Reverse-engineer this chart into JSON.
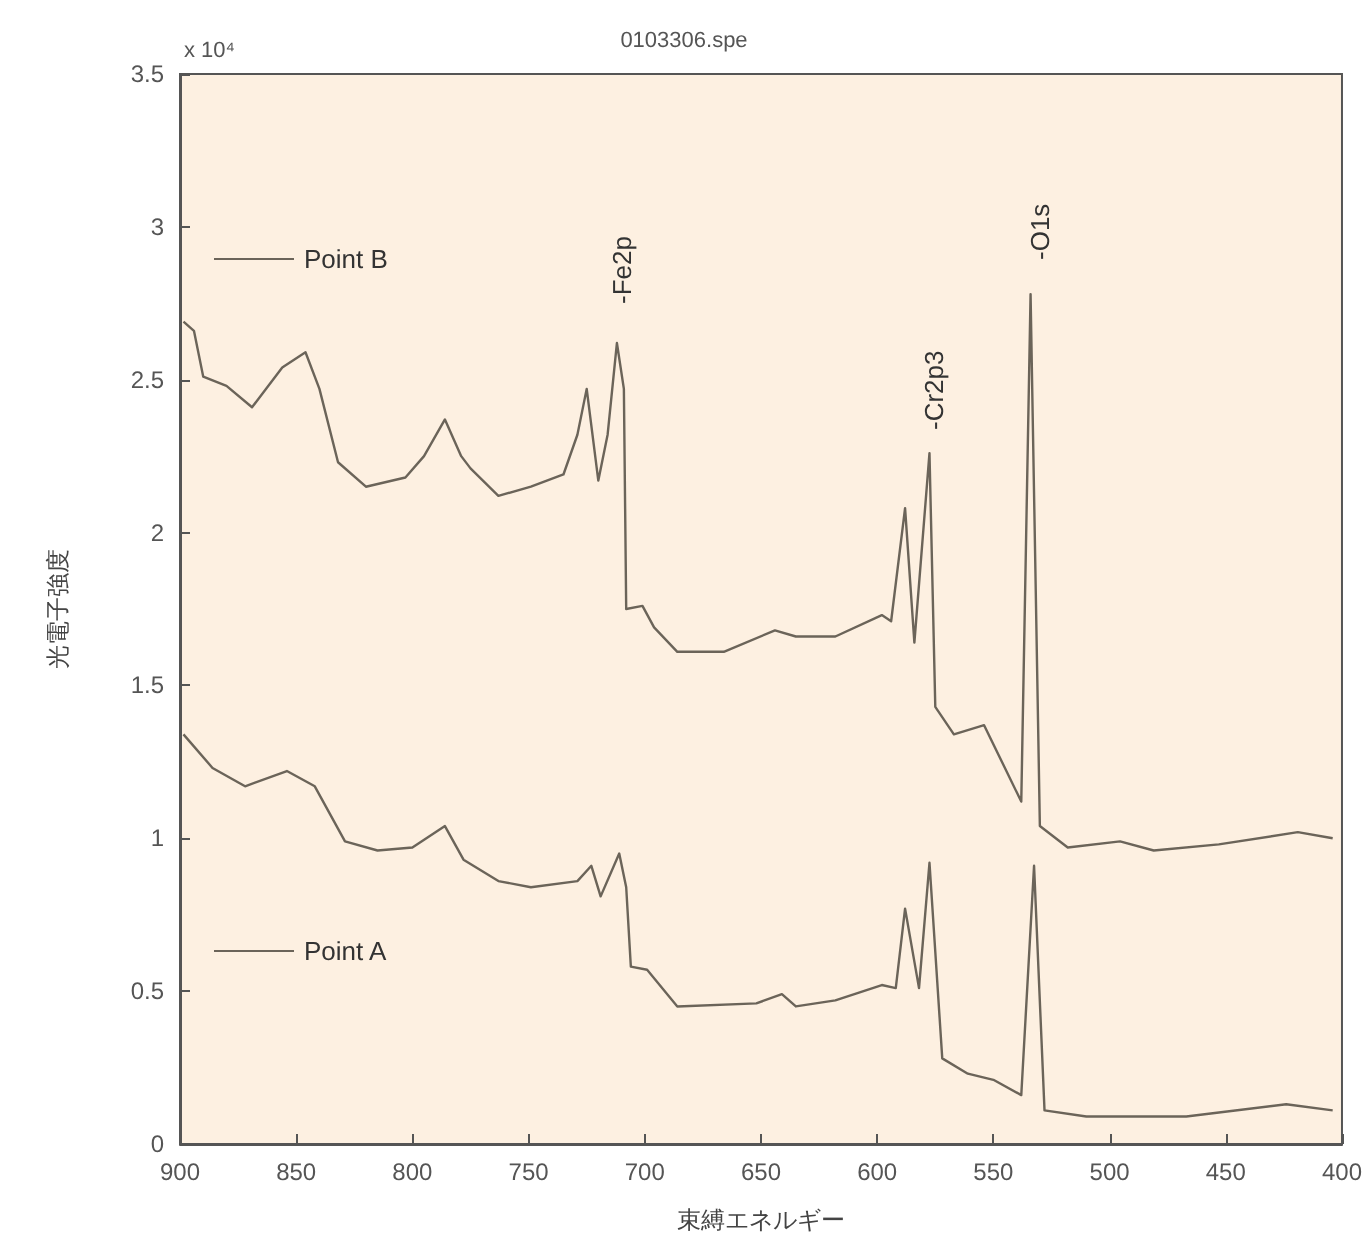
{
  "chart_data": {
    "type": "line",
    "title": "0103306.spe",
    "xlabel": "束縛エネルギー",
    "ylabel": "光電子強度",
    "xlim": [
      900,
      400
    ],
    "xticks": [
      900,
      850,
      800,
      750,
      700,
      650,
      600,
      550,
      500,
      450,
      400
    ],
    "ylim": [
      0,
      3.5
    ],
    "yticks": [
      0,
      0.5,
      1,
      1.5,
      2,
      2.5,
      3,
      3.5
    ],
    "grid": false,
    "legend": "left",
    "marker": "none",
    "line_style": "solid",
    "annotations": [
      "x 10⁴",
      "-Fe2p",
      "-Cr2p3",
      "-O1s"
    ],
    "series": [
      {
        "name": "Point B",
        "color": "#6b6459",
        "x": [
          898.5,
          894,
          890,
          880,
          869,
          856,
          846,
          840,
          832,
          820,
          803,
          795,
          786,
          779,
          775,
          763,
          749,
          735,
          729,
          725,
          720,
          716,
          712,
          709,
          708,
          701,
          696,
          686,
          666,
          644,
          635,
          618,
          598,
          594,
          588,
          584,
          577.5,
          575,
          567,
          554,
          538,
          534,
          530,
          518,
          495.5,
          481,
          453,
          419,
          404
        ],
        "values": [
          2.69,
          2.66,
          2.51,
          2.48,
          2.41,
          2.54,
          2.59,
          2.47,
          2.23,
          2.15,
          2.18,
          2.25,
          2.37,
          2.25,
          2.21,
          2.12,
          2.15,
          2.19,
          2.32,
          2.47,
          2.17,
          2.32,
          2.62,
          2.47,
          1.75,
          1.76,
          1.69,
          1.61,
          1.61,
          1.68,
          1.66,
          1.66,
          1.73,
          1.71,
          2.08,
          1.64,
          2.26,
          1.43,
          1.34,
          1.37,
          1.12,
          2.78,
          1.04,
          0.97,
          0.99,
          0.96,
          0.98,
          1.02,
          1.0
        ]
      },
      {
        "name": "Point A",
        "color": "#6b6459",
        "x": [
          898.5,
          886,
          872,
          854,
          842,
          829,
          815,
          800,
          786,
          778,
          763,
          749,
          729,
          723,
          719,
          711,
          708,
          706,
          699,
          686,
          652,
          641,
          635,
          618,
          598,
          592,
          588,
          582,
          577.5,
          572,
          561,
          550,
          538,
          532.5,
          528,
          510,
          467,
          424,
          404
        ],
        "values": [
          1.34,
          1.23,
          1.17,
          1.22,
          1.17,
          0.99,
          0.96,
          0.97,
          1.04,
          0.93,
          0.86,
          0.84,
          0.86,
          0.91,
          0.81,
          0.95,
          0.84,
          0.58,
          0.57,
          0.45,
          0.46,
          0.49,
          0.45,
          0.47,
          0.52,
          0.51,
          0.77,
          0.51,
          0.92,
          0.28,
          0.23,
          0.21,
          0.16,
          0.91,
          0.11,
          0.09,
          0.09,
          0.13,
          0.11
        ]
      }
    ]
  }
}
